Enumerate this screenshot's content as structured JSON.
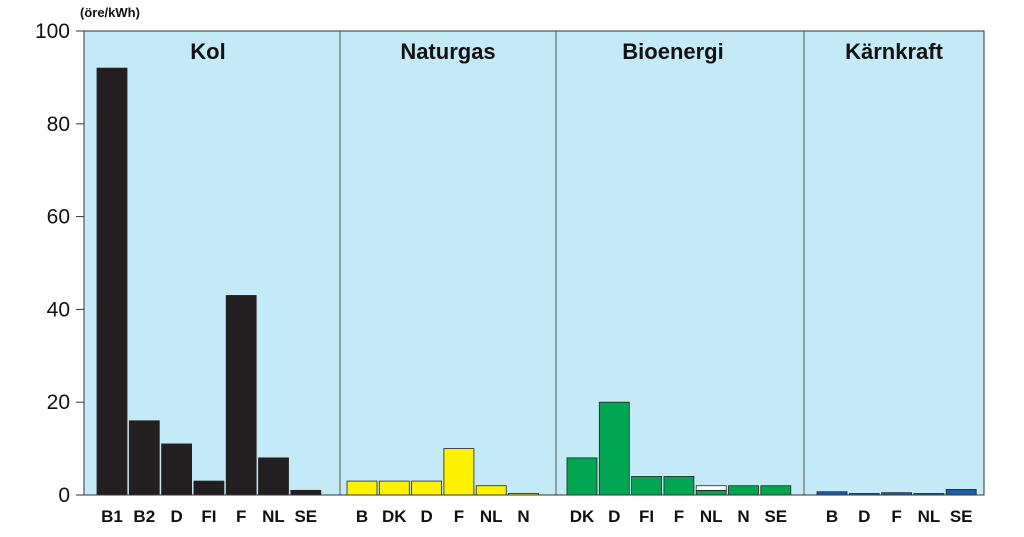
{
  "chart_data": {
    "type": "bar",
    "ylabel": "(öre/kWh)",
    "ylim": [
      0,
      100
    ],
    "yticks": [
      0,
      20,
      40,
      60,
      80,
      100
    ],
    "grid": false,
    "background": "#c4eaf8",
    "groups": [
      {
        "name": "Kol",
        "color": "#231f20",
        "categories": [
          "B1",
          "B2",
          "D",
          "FI",
          "F",
          "NL",
          "SE"
        ],
        "values": [
          92,
          16,
          11,
          3,
          43,
          8,
          1
        ]
      },
      {
        "name": "Naturgas",
        "color": "#fff200",
        "categories": [
          "B",
          "DK",
          "D",
          "F",
          "NL",
          "N"
        ],
        "values": [
          3,
          3,
          3,
          10,
          2,
          0.3
        ]
      },
      {
        "name": "Bioenergi",
        "color": "#00a651",
        "categories": [
          "DK",
          "D",
          "FI",
          "F",
          "NL",
          "N",
          "SE"
        ],
        "values": [
          8,
          20,
          4,
          4,
          1,
          2,
          2
        ],
        "extra": [
          0,
          0,
          0,
          0,
          1,
          0,
          0
        ]
      },
      {
        "name": "Kärnkraft",
        "color": "#1b5fa8",
        "categories": [
          "B",
          "D",
          "F",
          "NL",
          "SE"
        ],
        "values": [
          0.7,
          0.3,
          0.5,
          0.2,
          1.2
        ]
      }
    ]
  }
}
